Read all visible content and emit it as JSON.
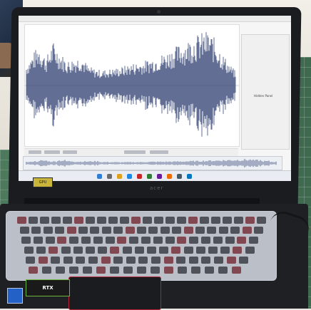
{
  "scene": "Laptop on a green cutting mat displaying an audio waveform editor",
  "laptop": {
    "brand_logo": "acer",
    "sticker_text": "GPU",
    "badge_text": "RTX"
  },
  "app": {
    "side_panel_label": "Hidden Panel"
  },
  "colors": {
    "waveform": "#3a4a7a",
    "mat": "#3f6a4f",
    "bezel": "#1b1c1f",
    "touchpad_trim": "#b22234"
  },
  "waveform": {
    "description": "amplitude envelope rising from left, quieter middle, peak near right",
    "envelope": [
      0.35,
      0.55,
      0.75,
      0.5,
      0.8,
      0.6,
      0.45,
      0.5,
      0.55,
      0.35,
      0.3,
      0.28,
      0.3,
      0.32,
      0.35,
      0.4,
      0.42,
      0.45,
      0.5,
      0.55,
      0.6,
      0.68,
      0.75,
      0.82,
      0.9,
      0.95,
      1.0,
      0.85,
      0.6,
      0.4,
      0.25
    ]
  }
}
